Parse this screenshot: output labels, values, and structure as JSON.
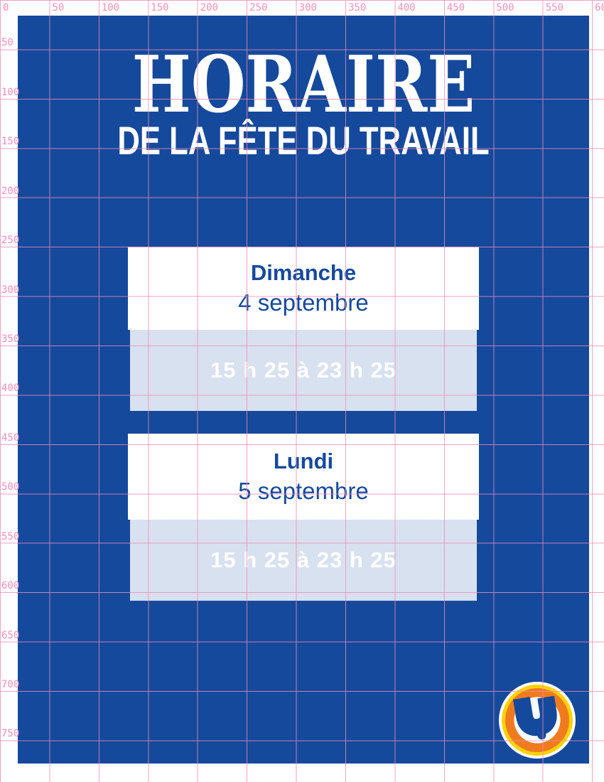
{
  "ruler": {
    "top_labels": [
      "0",
      "50",
      "100",
      "150",
      "200",
      "250",
      "300",
      "350",
      "400",
      "450",
      "500",
      "550",
      "600"
    ],
    "left_labels": [
      "50",
      "100",
      "150",
      "200",
      "250",
      "300",
      "350",
      "400",
      "450",
      "500",
      "550",
      "600",
      "650",
      "700",
      "750"
    ]
  },
  "poster": {
    "title": "HORAIRE",
    "subtitle": "DE LA FÊTE DU TRAVAIL",
    "schedule": [
      {
        "day": "Dimanche",
        "date": "4 septembre",
        "hours": "15 h 25 à 23 h 25"
      },
      {
        "day": "Lundi",
        "date": "5 septembre",
        "hours": "15 h 25 à 23 h 25"
      }
    ],
    "logo_letter": "U"
  },
  "colors": {
    "poster_blue": "#15499C",
    "grid_pink": "#F08AB8",
    "label_pink": "#F18FBB",
    "band_blue": "#D8E1EF",
    "card_white": "#FFFFFF",
    "logo_orange": "#F07B1E",
    "logo_yellow": "#FFD204",
    "text_white": "#FFFFFF"
  }
}
